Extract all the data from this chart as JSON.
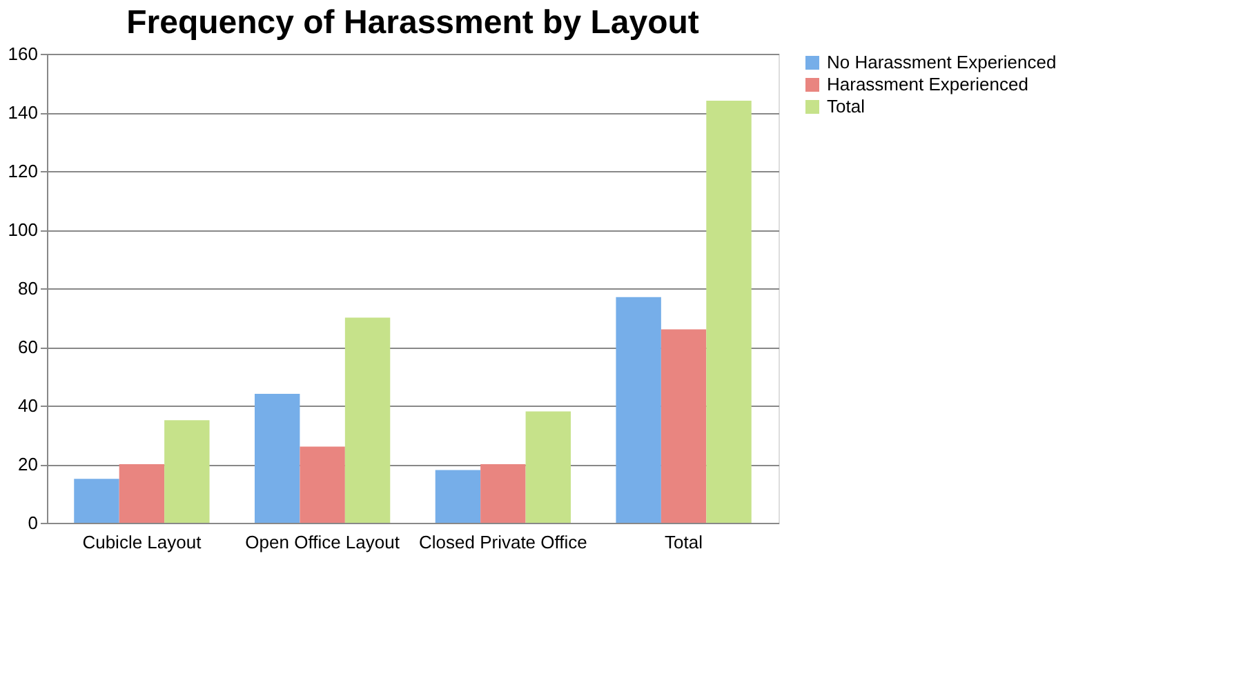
{
  "chart_data": {
    "type": "bar",
    "title": "Frequency of Harassment by Layout",
    "categories": [
      "Cubicle Layout",
      "Open Office Layout",
      "Closed Private Office",
      "Total"
    ],
    "series": [
      {
        "name": "No Harassment Experienced",
        "color": "#76aee9",
        "values": [
          15,
          44,
          18,
          77
        ]
      },
      {
        "name": "Harassment Experienced",
        "color": "#e98580",
        "values": [
          20,
          26,
          20,
          66
        ]
      },
      {
        "name": "Total",
        "color": "#c6e28a",
        "values": [
          35,
          70,
          38,
          144
        ]
      }
    ],
    "ylim": [
      0,
      160
    ],
    "yticks": [
      0,
      20,
      40,
      60,
      80,
      100,
      120,
      140,
      160
    ],
    "grid": "y",
    "legend": "right"
  }
}
